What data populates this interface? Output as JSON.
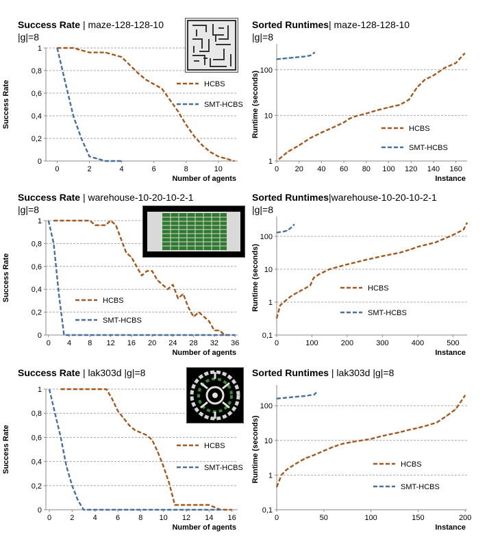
{
  "chart_data": [
    {
      "id": "sr-maze",
      "type": "line",
      "title_bold": "Success Rate",
      "title_rest": " | maze-128-128-10",
      "title_line2": "|g|=8",
      "xlabel": "Number of agents",
      "ylabel": "Success Rate",
      "xlim": [
        -0.7,
        11.2
      ],
      "ylim": [
        0,
        1
      ],
      "xticks": [
        "0",
        "2",
        "4",
        "6",
        "8",
        "10"
      ],
      "xtick_values": [
        0,
        2,
        4,
        6,
        8,
        10
      ],
      "yticks": [
        "0",
        "0,2",
        "0,4",
        "0,6",
        "0,8",
        "1"
      ],
      "ytick_values": [
        0,
        0.2,
        0.4,
        0.6,
        0.8,
        1
      ],
      "grid": "horizontal",
      "thumbnail": "maze",
      "series": [
        {
          "name": "HCBS",
          "color": "#a4561b",
          "x": [
            0,
            1,
            1.5,
            2,
            2.5,
            3,
            3.5,
            4,
            4.5,
            5,
            5.5,
            6,
            6.5,
            7,
            7.5,
            8,
            8.5,
            9,
            9.5,
            10,
            10.5,
            11
          ],
          "y": [
            1,
            1,
            0.98,
            0.96,
            0.96,
            0.96,
            0.94,
            0.92,
            0.85,
            0.78,
            0.72,
            0.68,
            0.64,
            0.54,
            0.44,
            0.32,
            0.22,
            0.14,
            0.08,
            0.04,
            0.02,
            0
          ]
        },
        {
          "name": "SMT-HCBS",
          "color": "#466e9e",
          "x": [
            0,
            0.5,
            1,
            1.5,
            2,
            2.5,
            3,
            3.5,
            4
          ],
          "y": [
            1,
            0.7,
            0.4,
            0.2,
            0.04,
            0.02,
            0,
            0,
            0
          ]
        }
      ]
    },
    {
      "id": "rt-maze",
      "type": "line",
      "title_bold": "Sorted Runtimes",
      "title_rest": "| maze-128-128-10",
      "title_line2": "|g|=8",
      "xlabel": "Instance",
      "ylabel": "Runtime (seconds)",
      "xlim": [
        0,
        170
      ],
      "ylim": [
        1,
        300
      ],
      "yscale": "log",
      "xticks": [
        "0",
        "20",
        "40",
        "60",
        "80",
        "100",
        "120",
        "140",
        "160"
      ],
      "xtick_values": [
        0,
        20,
        40,
        60,
        80,
        100,
        120,
        140,
        160
      ],
      "yticks": [
        "1",
        "10",
        "100"
      ],
      "ytick_values": [
        1,
        10,
        100
      ],
      "grid": "horizontal",
      "series": [
        {
          "name": "HCBS",
          "color": "#a4561b",
          "x": [
            2,
            10,
            20,
            30,
            40,
            50,
            60,
            65,
            70,
            80,
            90,
            100,
            110,
            118,
            125,
            132,
            140,
            150,
            160,
            168
          ],
          "y": [
            1.1,
            1.6,
            2.2,
            3.2,
            4.2,
            5.4,
            7,
            8.5,
            9.5,
            11,
            13,
            15,
            17,
            22,
            40,
            60,
            75,
            110,
            140,
            230
          ]
        },
        {
          "name": "SMT-HCBS",
          "color": "#466e9e",
          "x": [
            0,
            5,
            10,
            15,
            20,
            25,
            30,
            34
          ],
          "y": [
            170,
            175,
            180,
            185,
            190,
            195,
            205,
            240
          ]
        }
      ]
    },
    {
      "id": "sr-wh",
      "type": "line",
      "title_bold": "Success Rate",
      "title_rest": " | warehouse-10-20-10-2-1",
      "title_line2": "|g|=8",
      "xlabel": "Number of agents",
      "ylabel": "Success Rate",
      "xlim": [
        -0.5,
        36.5
      ],
      "ylim": [
        0,
        1
      ],
      "xticks": [
        "0",
        "4",
        "8",
        "12",
        "16",
        "20",
        "24",
        "28",
        "32",
        "36"
      ],
      "xtick_values": [
        0,
        4,
        8,
        12,
        16,
        20,
        24,
        28,
        32,
        36
      ],
      "yticks": [
        "0",
        "0,2",
        "0,4",
        "0,6",
        "0,8",
        "1"
      ],
      "ytick_values": [
        0,
        0.2,
        0.4,
        0.6,
        0.8,
        1
      ],
      "grid": "horizontal",
      "thumbnail": "warehouse",
      "series": [
        {
          "name": "HCBS",
          "color": "#a4561b",
          "x": [
            1,
            8,
            9,
            10,
            11,
            12,
            13,
            14,
            15,
            16,
            17,
            18,
            19,
            20,
            21,
            22,
            23,
            24,
            25,
            26,
            27,
            28,
            29,
            30,
            31,
            32,
            33,
            34,
            35
          ],
          "y": [
            1,
            1,
            0.96,
            0.96,
            0.96,
            1,
            0.96,
            0.84,
            0.72,
            0.68,
            0.6,
            0.52,
            0.56,
            0.56,
            0.48,
            0.44,
            0.4,
            0.44,
            0.32,
            0.36,
            0.24,
            0.16,
            0.2,
            0.16,
            0.12,
            0.04,
            0.04,
            0,
            0
          ]
        },
        {
          "name": "SMT-HCBS",
          "color": "#466e9e",
          "x": [
            0,
            1,
            2,
            3,
            4,
            36
          ],
          "y": [
            1,
            0.8,
            0.36,
            0,
            0,
            0
          ]
        }
      ]
    },
    {
      "id": "rt-wh",
      "type": "line",
      "title_bold": "Sorted Runtimes",
      "title_rest": "|warehouse-10-20-10-2-1",
      "title_line2": "|g|=8",
      "xlabel": "Instance",
      "ylabel": "Runtime (seconds)",
      "xlim": [
        0,
        540
      ],
      "ylim": [
        0.1,
        300
      ],
      "yscale": "log",
      "xticks": [
        "0",
        "100",
        "200",
        "300",
        "400",
        "500"
      ],
      "xtick_values": [
        0,
        100,
        200,
        300,
        400,
        500
      ],
      "yticks": [
        "0,1",
        "1",
        "10",
        "100"
      ],
      "ytick_values": [
        0.1,
        1,
        10,
        100
      ],
      "grid": "horizontal",
      "series": [
        {
          "name": "HCBS",
          "color": "#a4561b",
          "x": [
            0,
            10,
            20,
            40,
            60,
            80,
            95,
            105,
            120,
            150,
            200,
            250,
            300,
            350,
            380,
            400,
            450,
            500,
            530,
            540
          ],
          "y": [
            0.32,
            0.8,
            1,
            1.5,
            2,
            2.6,
            3.2,
            5.5,
            7,
            10,
            14,
            19,
            25,
            32,
            40,
            48,
            65,
            110,
            160,
            260
          ]
        },
        {
          "name": "SMT-HCBS",
          "color": "#466e9e",
          "x": [
            0,
            10,
            20,
            30,
            40,
            50
          ],
          "y": [
            130,
            135,
            140,
            150,
            180,
            230
          ]
        }
      ]
    },
    {
      "id": "sr-lak",
      "type": "line",
      "title_bold": "Success Rate",
      "title_rest": " | lak303d |g|=8",
      "title_line2": "",
      "xlabel": "Number of agents",
      "ylabel": "Success Rate",
      "xlim": [
        -0.3,
        16.5
      ],
      "ylim": [
        0,
        1
      ],
      "xticks": [
        "0",
        "2",
        "4",
        "6",
        "8",
        "10",
        "12",
        "14",
        "16"
      ],
      "xtick_values": [
        0,
        2,
        4,
        6,
        8,
        10,
        12,
        14,
        16
      ],
      "yticks": [
        "0",
        "0,2",
        "0,4",
        "0,6",
        "0,8",
        "1"
      ],
      "ytick_values": [
        0,
        0.2,
        0.4,
        0.6,
        0.8,
        1
      ],
      "grid": "horizontal",
      "thumbnail": "lak",
      "series": [
        {
          "name": "HCBS",
          "color": "#a4561b",
          "x": [
            1,
            5,
            5.5,
            6,
            6.5,
            7,
            7.5,
            8,
            8.5,
            9,
            9.5,
            10,
            10.5,
            11,
            12,
            13,
            14,
            14.5,
            15,
            16
          ],
          "y": [
            1,
            1,
            0.92,
            0.82,
            0.76,
            0.7,
            0.66,
            0.64,
            0.62,
            0.58,
            0.48,
            0.36,
            0.22,
            0.04,
            0.04,
            0.04,
            0.04,
            0.02,
            0,
            0
          ]
        },
        {
          "name": "SMT-HCBS",
          "color": "#466e9e",
          "x": [
            0,
            0.5,
            1,
            1.5,
            2,
            2.5,
            3,
            4,
            15
          ],
          "y": [
            1,
            0.8,
            0.6,
            0.36,
            0.2,
            0.08,
            0,
            0,
            0
          ]
        }
      ]
    },
    {
      "id": "rt-lak",
      "type": "line",
      "title_bold": "Sorted Runtimes",
      "title_rest": " | lak303d |g|=8",
      "title_line2": "",
      "xlabel": "Instance",
      "ylabel": "Runtime (seconds)",
      "xlim": [
        0,
        202
      ],
      "ylim": [
        0.1,
        300
      ],
      "yscale": "log",
      "xticks": [
        "0",
        "50",
        "100",
        "150",
        "200"
      ],
      "xtick_values": [
        0,
        50,
        100,
        150,
        200
      ],
      "yticks": [
        "0,1",
        "1",
        "10",
        "100"
      ],
      "ytick_values": [
        0.1,
        1,
        10,
        100
      ],
      "grid": "horizontal",
      "series": [
        {
          "name": "HCBS",
          "color": "#a4561b",
          "x": [
            0,
            5,
            10,
            20,
            30,
            40,
            50,
            60,
            70,
            80,
            90,
            100,
            110,
            120,
            130,
            140,
            150,
            160,
            170,
            180,
            190,
            200
          ],
          "y": [
            0.45,
            1,
            1.4,
            2.1,
            3,
            3.8,
            5,
            6.5,
            8,
            9,
            10,
            11,
            13,
            15,
            17,
            20,
            23,
            27,
            33,
            50,
            80,
            200
          ]
        },
        {
          "name": "SMT-HCBS",
          "color": "#466e9e",
          "x": [
            0,
            10,
            20,
            30,
            40,
            42
          ],
          "y": [
            160,
            170,
            180,
            190,
            210,
            240
          ]
        }
      ]
    }
  ]
}
